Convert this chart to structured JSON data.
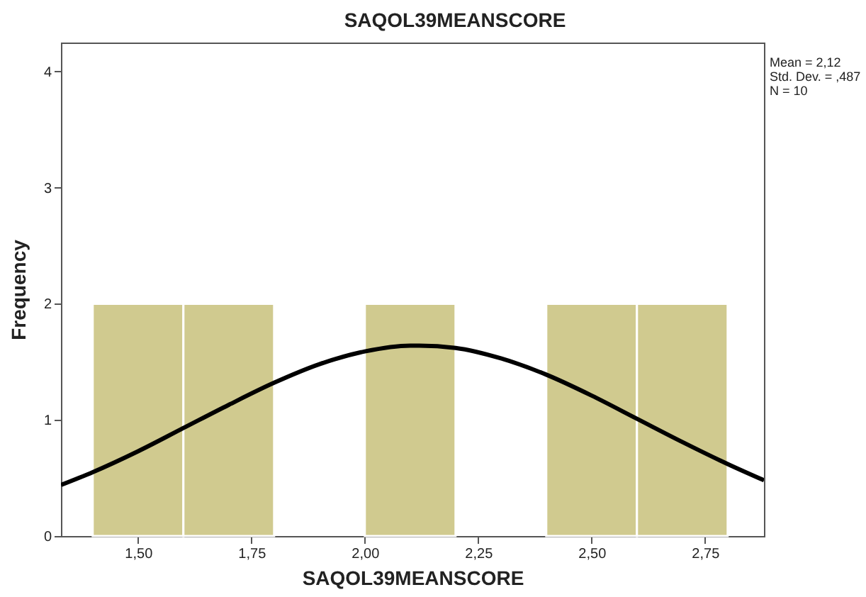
{
  "chart_data": {
    "type": "histogram",
    "title": "SAQOL39MEANSCORE",
    "xlabel": "SAQOL39MEANSCORE",
    "ylabel": "Frequency",
    "bins": [
      1.4,
      1.6,
      1.8,
      2.0,
      2.2,
      2.4,
      2.6,
      2.8
    ],
    "values": [
      2,
      2,
      0,
      2,
      0,
      2,
      2
    ],
    "color": "#d0ca8f",
    "series": [
      {
        "type": "line",
        "color": "#000000",
        "x": [
          1.33,
          1.4,
          1.5,
          1.6,
          1.7,
          1.8,
          1.9,
          2.0,
          2.1,
          2.12,
          2.2,
          2.3,
          2.4,
          2.5,
          2.6,
          2.7,
          2.8,
          2.88
        ],
        "values": [
          0.44,
          0.55,
          0.73,
          0.93,
          1.13,
          1.32,
          1.48,
          1.59,
          1.64,
          1.64,
          1.62,
          1.53,
          1.39,
          1.21,
          1.01,
          0.81,
          0.62,
          0.48
        ]
      }
    ],
    "xlim": [
      1.33,
      2.88
    ],
    "xticks": [
      {
        "value": 1.5,
        "label": "1,50"
      },
      {
        "value": 1.75,
        "label": "1,75"
      },
      {
        "value": 2.0,
        "label": "2,00"
      },
      {
        "value": 2.25,
        "label": "2,25"
      },
      {
        "value": 2.5,
        "label": "2,50"
      },
      {
        "value": 2.75,
        "label": "2,75"
      }
    ],
    "ylim": [
      0,
      4.25
    ],
    "yticks": [
      0,
      1,
      2,
      3,
      4
    ],
    "grid": false,
    "annotations": [
      "Mean = 2,12",
      "Std. Dev. = ,487",
      "N = 10"
    ]
  }
}
